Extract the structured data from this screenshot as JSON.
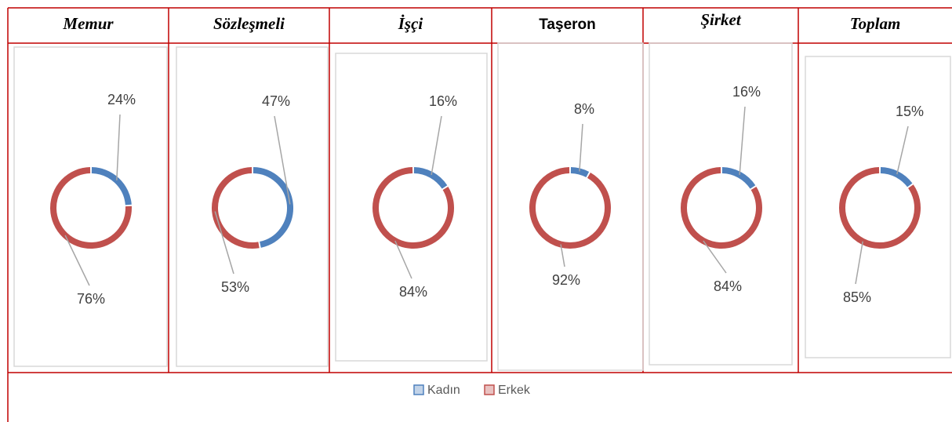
{
  "legend": {
    "labels": [
      "Kadın",
      "Erkek"
    ],
    "colors": [
      "#4f81bd",
      "#c0504d"
    ]
  },
  "chart_data": [
    {
      "type": "donut",
      "title": "Memur",
      "values": [
        24,
        76
      ],
      "value_labels": [
        "24%",
        "76%"
      ]
    },
    {
      "type": "donut",
      "title": "Sözleşmeli",
      "values": [
        47,
        53
      ],
      "value_labels": [
        "47%",
        "53%"
      ]
    },
    {
      "type": "donut",
      "title": "İşçi",
      "values": [
        16,
        84
      ],
      "value_labels": [
        "16%",
        "84%"
      ]
    },
    {
      "type": "donut",
      "title": "Taşeron",
      "values": [
        8,
        92
      ],
      "value_labels": [
        "8%",
        "92%"
      ]
    },
    {
      "type": "donut",
      "title": "Şirket",
      "values": [
        16,
        84
      ],
      "value_labels": [
        "16%",
        "84%"
      ]
    },
    {
      "type": "donut",
      "title": "Toplam",
      "values": [
        15,
        85
      ],
      "value_labels": [
        "15%",
        "85%"
      ]
    }
  ]
}
